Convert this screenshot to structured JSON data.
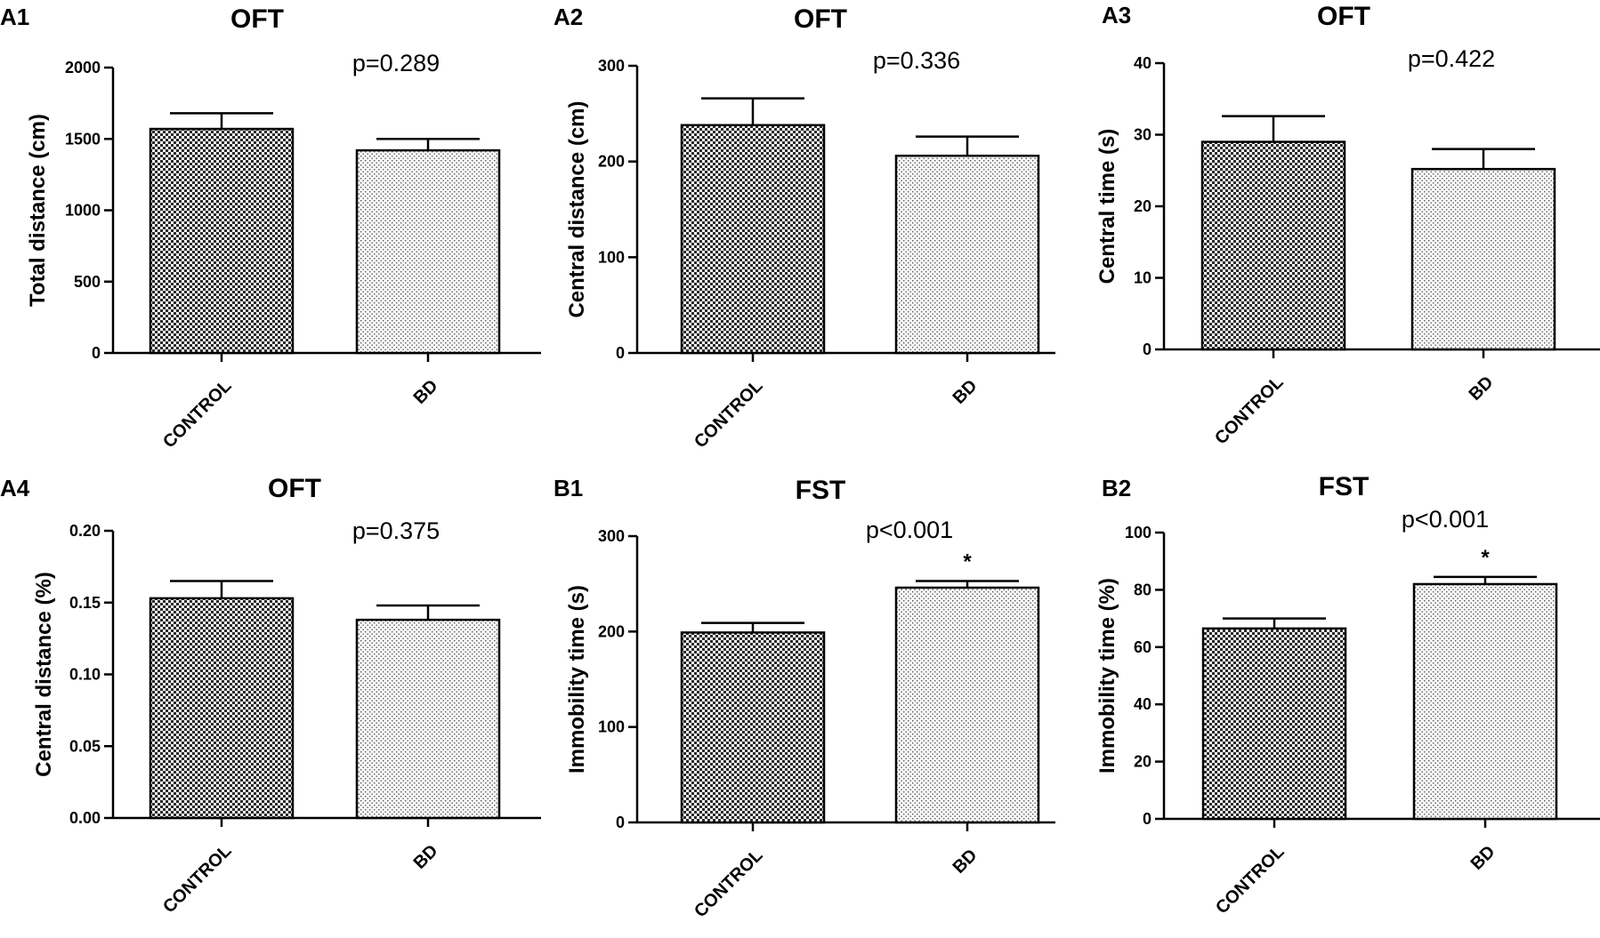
{
  "chart_data": [
    {
      "panel": "A1",
      "type": "bar",
      "title": "OFT",
      "xlabel": "",
      "ylabel": "Total distance (cm)",
      "categories": [
        "CONTROL",
        "BD"
      ],
      "values": [
        1570,
        1420
      ],
      "errors": [
        110,
        80
      ],
      "ylim": [
        0,
        2000
      ],
      "yticks": [
        0,
        500,
        1000,
        1500,
        2000
      ],
      "ytick_labels": [
        "0",
        "500",
        "1000",
        "1500",
        "2000"
      ],
      "annotation": "p=0.289",
      "significance": [
        "",
        ""
      ]
    },
    {
      "panel": "A2",
      "type": "bar",
      "title": "OFT",
      "xlabel": "",
      "ylabel": "Central distance (cm)",
      "categories": [
        "CONTROL",
        "BD"
      ],
      "values": [
        238,
        206
      ],
      "errors": [
        28,
        20
      ],
      "ylim": [
        0,
        300
      ],
      "yticks": [
        0,
        100,
        200,
        300
      ],
      "ytick_labels": [
        "0",
        "100",
        "200",
        "300"
      ],
      "annotation": "p=0.336",
      "significance": [
        "",
        ""
      ]
    },
    {
      "panel": "A3",
      "type": "bar",
      "title": "OFT",
      "xlabel": "",
      "ylabel": "Central time (s)",
      "categories": [
        "CONTROL",
        "BD"
      ],
      "values": [
        29,
        25.2
      ],
      "errors": [
        3.6,
        2.8
      ],
      "ylim": [
        0,
        40
      ],
      "yticks": [
        0,
        10,
        20,
        30,
        40
      ],
      "ytick_labels": [
        "0",
        "10",
        "20",
        "30",
        "40"
      ],
      "annotation": "p=0.422",
      "significance": [
        "",
        ""
      ]
    },
    {
      "panel": "A4",
      "type": "bar",
      "title": "OFT",
      "xlabel": "",
      "ylabel": "Central distance (%)",
      "categories": [
        "CONTROL",
        "BD"
      ],
      "values": [
        0.153,
        0.138
      ],
      "errors": [
        0.012,
        0.01
      ],
      "ylim": [
        0,
        0.2
      ],
      "yticks": [
        0,
        0.05,
        0.1,
        0.15,
        0.2
      ],
      "ytick_labels": [
        "0.00",
        "0.05",
        "0.10",
        "0.15",
        "0.20"
      ],
      "annotation": "p=0.375",
      "significance": [
        "",
        ""
      ]
    },
    {
      "panel": "B1",
      "type": "bar",
      "title": "FST",
      "xlabel": "",
      "ylabel": "Immobility time (s)",
      "categories": [
        "CONTROL",
        "BD"
      ],
      "values": [
        199,
        246
      ],
      "errors": [
        10,
        7
      ],
      "ylim": [
        0,
        300
      ],
      "yticks": [
        0,
        100,
        200,
        300
      ],
      "ytick_labels": [
        "0",
        "100",
        "200",
        "300"
      ],
      "annotation": "p<0.001",
      "significance": [
        "",
        "*"
      ]
    },
    {
      "panel": "B2",
      "type": "bar",
      "title": "FST",
      "xlabel": "",
      "ylabel": "Immobility time (%)",
      "categories": [
        "CONTROL",
        "BD"
      ],
      "values": [
        66.5,
        82
      ],
      "errors": [
        3.5,
        2.5
      ],
      "ylim": [
        0,
        100
      ],
      "yticks": [
        0,
        20,
        40,
        60,
        80,
        100
      ],
      "ytick_labels": [
        "0",
        "20",
        "40",
        "60",
        "80",
        "100"
      ],
      "annotation": "p<0.001",
      "significance": [
        "",
        "*"
      ]
    }
  ]
}
